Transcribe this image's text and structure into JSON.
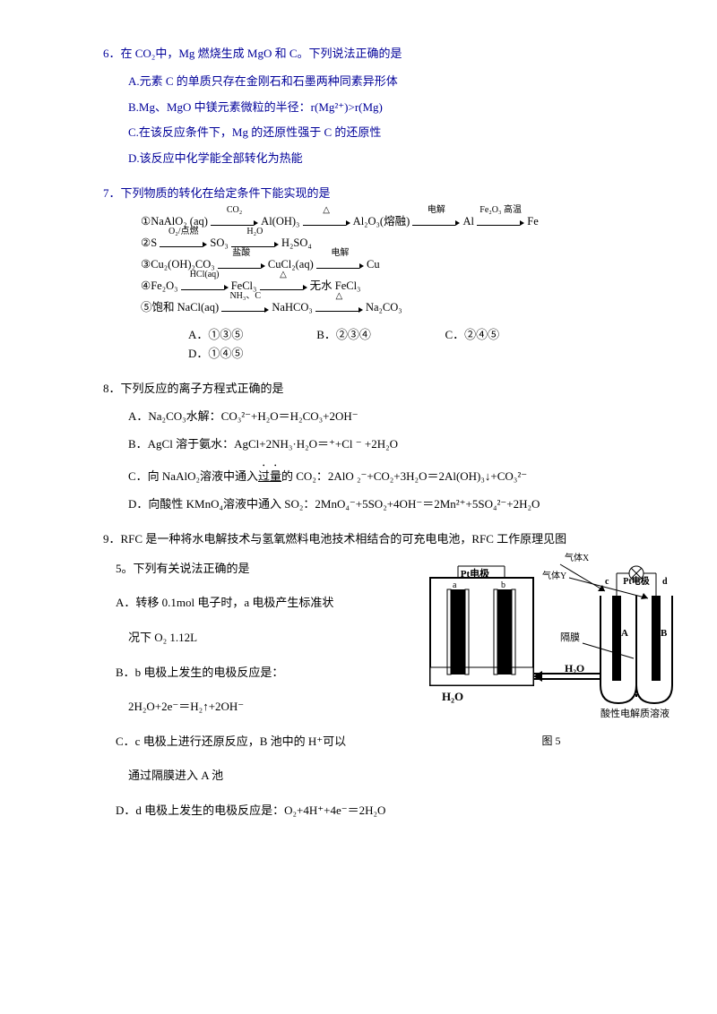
{
  "colors": {
    "blue": "#000099",
    "black": "#000000",
    "bg": "#ffffff"
  },
  "q6": {
    "stem": "6．在 CO₂中，Mg 燃烧生成 MgO 和 C。下列说法正确的是",
    "A": "A.元素 C 的单质只存在金刚石和石墨两种同素异形体",
    "B": "B.Mg、MgO 中镁元素微粒的半径：r(Mg²⁺)>r(Mg)",
    "C": "C.在该反应条件下，Mg 的还原性强于 C 的还原性",
    "D": "D.该反应中化学能全部转化为热能"
  },
  "q7": {
    "stem": "7．下列物质的转化在给定条件下能实现的是",
    "chains": [
      {
        "nodes": [
          "①NaAlO₂ (aq)",
          "Al(OH)₃",
          "Al₂O₃(熔融)",
          "Al",
          "Fe"
        ],
        "labels": [
          "CO₂",
          "△",
          "电解",
          "Fe₂O₃ 高温"
        ]
      },
      {
        "nodes": [
          "②S",
          "SO₃",
          "H₂SO₄"
        ],
        "labels": [
          "O₂/点燃",
          "H₂O"
        ]
      },
      {
        "nodes": [
          "③Cu₂(OH)₂CO₃",
          "CuCl₂(aq)",
          "Cu"
        ],
        "labels": [
          "盐酸",
          "电解"
        ]
      },
      {
        "nodes": [
          "④Fe₂O₃",
          "FeCl₃",
          "无水 FeCl₃"
        ],
        "labels": [
          "HCl(aq)",
          "△"
        ]
      },
      {
        "nodes": [
          "⑤饱和 NaCl(aq)",
          "NaHCO₃",
          "Na₂CO₃"
        ],
        "labels": [
          "NH₃、C",
          "△"
        ]
      }
    ],
    "choices": {
      "A": "A．①③⑤",
      "B": "B．②③④",
      "C": "C．②④⑤",
      "D": "D．①④⑤"
    }
  },
  "q8": {
    "stem": "8．下列反应的离子方程式正确的是",
    "A": "A．Na₂CO₃水解：CO₃²⁻+H₂O＝H₂CO₃+2OH⁻",
    "B": "B．AgCl 溶于氨水：AgCl+2NH₃·H₂O＝⁺+Cl ⁻ +2H₂O",
    "C_pre": "C．向 NaAlO₂溶液中通入",
    "C_em": "过量",
    "C_post": "的 CO₂：2AlO ₂⁻+CO₂+3H₂O＝2Al(OH)₃↓+CO₃²⁻",
    "D": "D．向酸性 KMnO₄溶液中通入 SO₂：2MnO₄⁻+5SO₂+4OH⁻＝2Mn²⁺+5SO₄²⁻+2H₂O"
  },
  "q9": {
    "stem": "9．RFC 是一种将水电解技术与氢氧燃料电池技术相结合的可充电电池，RFC 工作原理见图",
    "stem2": "5。下列有关说法正确的是",
    "A1": "A．转移 0.1mol 电子时，a 电极产生标准状",
    "A2": "况下 O₂ 1.12L",
    "B1": "B．b 电极上发生的电极反应是：",
    "B2": "2H₂O+2e⁻＝H₂↑+2OH⁻",
    "C1": "C．c 电极上进行还原反应，B 池中的 H⁺可以",
    "C2": "通过隔膜进入 A 池",
    "D": "D．d 电极上发生的电极反应是：O₂+4H⁺+4e⁻＝2H₂O",
    "diagram": {
      "gasX": "气体X",
      "gasY": "气体Y",
      "ptLeft": "Pt电极",
      "ptRight": "Pt电极",
      "a": "a",
      "b": "b",
      "c": "c",
      "d": "d",
      "membrane": "隔膜",
      "h2o_left": "H₂O",
      "h2o_right": "H₂O",
      "A": "A",
      "B": "B",
      "solution": "酸性电解质溶液",
      "caption": "图 5"
    }
  }
}
